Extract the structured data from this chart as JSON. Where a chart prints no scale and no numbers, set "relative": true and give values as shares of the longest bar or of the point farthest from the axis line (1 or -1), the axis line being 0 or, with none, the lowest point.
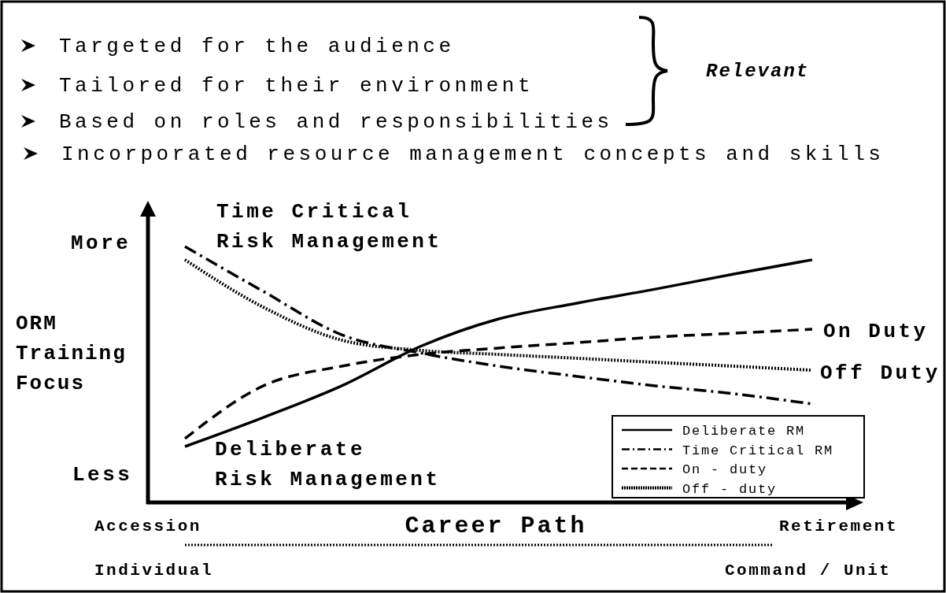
{
  "chart_data": {
    "type": "line",
    "relative": true,
    "xlabel": "Career Path",
    "ylabel": "ORM Training Focus",
    "legend": "bottom right",
    "categories": [
      null,
      null,
      null,
      null,
      null,
      null,
      null,
      null,
      null
    ],
    "series": [
      {
        "name": "Deliberate RM",
        "color": "#000000",
        "line_style": "solid",
        "values": [
          0.216,
          0.33,
          0.454,
          0.608,
          0.716,
          0.778,
          0.833,
          0.892,
          0.948
        ]
      },
      {
        "name": "Time Critical RM",
        "color": "#000000",
        "line_style": "dashdot",
        "values": [
          1.0,
          0.824,
          0.654,
          0.583,
          0.531,
          0.491,
          0.454,
          0.423,
          0.383
        ]
      },
      {
        "name": "On - duty",
        "color": "#000000",
        "line_style": "dashed",
        "values": [
          0.247,
          0.454,
          0.531,
          0.577,
          0.602,
          0.623,
          0.645,
          0.66,
          0.676
        ]
      },
      {
        "name": "Off - duty",
        "color": "#000000",
        "line_style": "dotted",
        "values": [
          0.948,
          0.762,
          0.633,
          0.593,
          0.577,
          0.562,
          0.546,
          0.531,
          0.515
        ]
      }
    ],
    "annotations": [
      "Targeted for the audience",
      "Tailored for their environment",
      "Based on roles and responsibilities",
      "Incorporated resource management concepts and skills",
      "Relevant",
      "Time Critical Risk Management",
      "Deliberate Risk Management",
      "More",
      "Less",
      "On Duty",
      "Off Duty",
      "Accession",
      "Retirement",
      "Individual",
      "Command / Unit"
    ]
  }
}
